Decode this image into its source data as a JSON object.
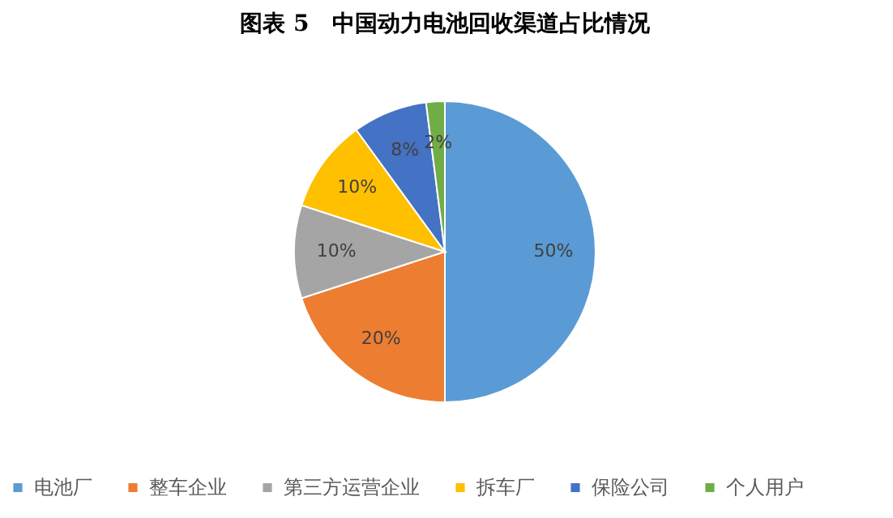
{
  "chart_data": {
    "type": "pie",
    "title": "图表 5　中国动力电池回收渠道占比情况",
    "categories": [
      "电池厂",
      "整车企业",
      "第三方运营企业",
      "拆车厂",
      "保险公司",
      "个人用户"
    ],
    "values": [
      50,
      20,
      10,
      10,
      8,
      2
    ],
    "colors": [
      "#5b9bd5",
      "#ed7d31",
      "#a5a5a5",
      "#ffc000",
      "#4472c4",
      "#70ad47"
    ],
    "value_labels": [
      "50%",
      "20%",
      "10%",
      "10%",
      "8%",
      "2%"
    ],
    "legend": "bottom"
  }
}
